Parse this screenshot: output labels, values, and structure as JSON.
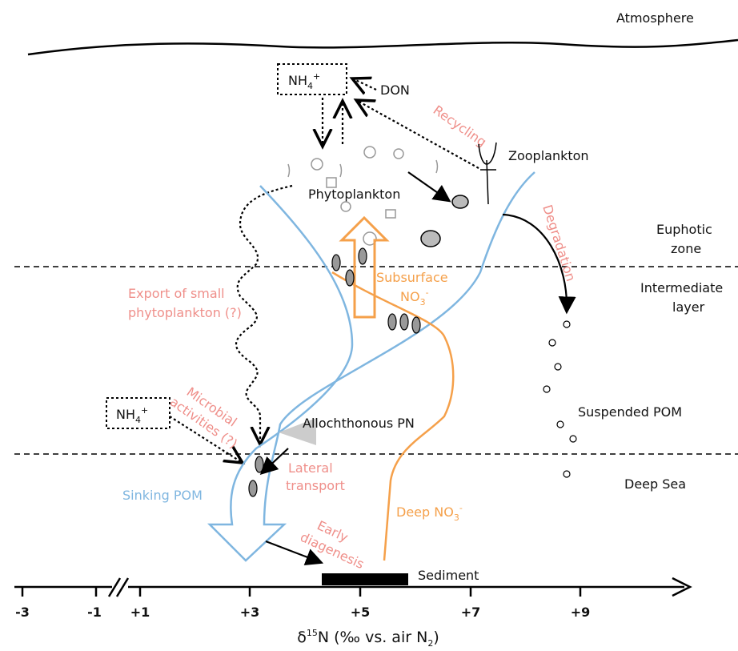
{
  "atmosphere": "Atmosphere",
  "nh4_surface": {
    "base": "NH",
    "sub": "4",
    "sup": "+"
  },
  "don": "DON",
  "recycling": "Recycling",
  "zooplankton": "Zooplankton",
  "phytoplankton": "Phytoplankton",
  "degradation": "Degradation",
  "euphotic_zone": [
    "Euphotic",
    "zone"
  ],
  "intermediate_layer": [
    "Intermediate",
    "layer"
  ],
  "subsurface_no3": {
    "line1": "Subsurface",
    "base": "NO",
    "sub": "3",
    "sup": "-"
  },
  "export_small": [
    "Export of small",
    "phytoplankton (?)"
  ],
  "microbial": [
    "Microbial",
    "activities (?)"
  ],
  "nh4_deep": {
    "base": "NH",
    "sub": "4",
    "sup": "+"
  },
  "allochthonous": "Allochthonous PN",
  "lateral": [
    "Lateral",
    "transport"
  ],
  "suspended_pom": "Suspended POM",
  "deep_sea": "Deep Sea",
  "sinking_pom": "Sinking POM",
  "deep_no3": {
    "base": "Deep NO",
    "sub": "3",
    "sup": "-"
  },
  "early_diagenesis": [
    "Early",
    "diagenesis"
  ],
  "sediment": "Sediment",
  "axis": {
    "ticks": [
      "-3",
      "-1",
      "+1",
      "+3",
      "+5",
      "+7",
      "+9"
    ],
    "label": {
      "pre": "δ",
      "sup": "15",
      "mid": "N (‰ vs. air N",
      "sub": "2",
      "post": ")"
    }
  }
}
